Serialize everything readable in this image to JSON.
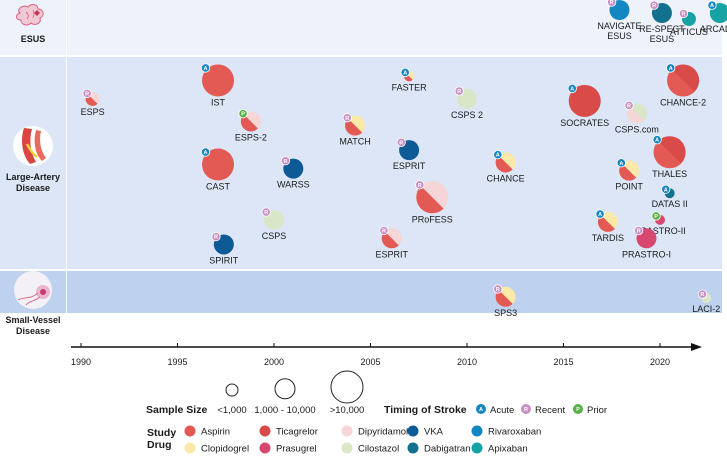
{
  "chart_data": {
    "type": "scatter",
    "xlim": [
      1990,
      2024
    ],
    "x_ticks": [
      1990,
      1995,
      2000,
      2005,
      2010,
      2015,
      2020
    ],
    "rows": [
      {
        "key": "esus",
        "label": [
          "ESUS"
        ]
      },
      {
        "key": "lad",
        "label": [
          "Large-Artery",
          "Disease"
        ]
      },
      {
        "key": "svd",
        "label": [
          "Small-Vessel",
          "Disease"
        ]
      }
    ],
    "colors": {
      "Aspirin": "#e35a55",
      "Ticagrelor": "#d94b48",
      "Dipyridamole": "#f6d5d6",
      "VKA": "#0d5a96",
      "Rivaroxaban": "#1487c2",
      "Clopidogrel": "#fbe9a8",
      "Prasugrel": "#d6486f",
      "Cilostazol": "#d9e6c8",
      "Dabigatran": "#12718e",
      "Apixaban": "#17a2a3"
    },
    "timing_colors": {
      "A": "#1487c2",
      "R": "#c98fc3",
      "P": "#58b048"
    },
    "trials": [
      {
        "name": "NAVIGATE ESUS",
        "label_lines": [
          "NAVIGATE",
          "ESUS"
        ],
        "row": "esus",
        "year": 2017.9,
        "lane": 0.14,
        "size": "medium",
        "drugs": [
          "Rivaroxaban"
        ],
        "timing": "R"
      },
      {
        "name": "RE-SPECT ESUS",
        "label_lines": [
          "RE-SPECT",
          "ESUS"
        ],
        "row": "esus",
        "year": 2020.1,
        "lane": 0.2,
        "size": "medium",
        "drugs": [
          "Dabigatran"
        ],
        "timing": "R"
      },
      {
        "name": "ATTICUS",
        "label_lines": [
          "ATTICUS"
        ],
        "row": "esus",
        "year": 2021.5,
        "lane": 0.32,
        "size": "small",
        "drugs": [
          "Apixaban"
        ],
        "timing": "R"
      },
      {
        "name": "ARCADIA",
        "label_lines": [
          "ARCADIA"
        ],
        "row": "esus",
        "year": 2023.1,
        "lane": 0.2,
        "size": "medium",
        "drugs": [
          "Apixaban"
        ],
        "timing": "A"
      },
      {
        "name": "ESPS",
        "label_lines": [
          "ESPS"
        ],
        "row": "lad",
        "year": 1990.6,
        "lane": 0.18,
        "size": "small",
        "drugs": [
          "Aspirin",
          "Dipyridamole"
        ],
        "timing": "R"
      },
      {
        "name": "IST",
        "label_lines": [
          "IST"
        ],
        "row": "lad",
        "year": 1997.1,
        "lane": 0.09,
        "size": "large",
        "drugs": [
          "Aspirin"
        ],
        "timing": "A"
      },
      {
        "name": "ESPS-2",
        "label_lines": [
          "ESPS-2"
        ],
        "row": "lad",
        "year": 1998.8,
        "lane": 0.29,
        "size": "medium",
        "drugs": [
          "Aspirin",
          "Dipyridamole"
        ],
        "timing": "P"
      },
      {
        "name": "CAST",
        "label_lines": [
          "CAST"
        ],
        "row": "lad",
        "year": 1997.1,
        "lane": 0.5,
        "size": "large",
        "drugs": [
          "Aspirin"
        ],
        "timing": "A"
      },
      {
        "name": "WARSS",
        "label_lines": [
          "WARSS"
        ],
        "row": "lad",
        "year": 2001.0,
        "lane": 0.52,
        "size": "medium",
        "drugs": [
          "VKA"
        ],
        "timing": "R"
      },
      {
        "name": "CSPS",
        "label_lines": [
          "CSPS"
        ],
        "row": "lad",
        "year": 2000.0,
        "lane": 0.77,
        "size": "medium",
        "drugs": [
          "Cilostazol"
        ],
        "timing": "R"
      },
      {
        "name": "SPIRIT",
        "label_lines": [
          "SPIRIT"
        ],
        "row": "lad",
        "year": 1997.4,
        "lane": 0.89,
        "size": "medium",
        "drugs": [
          "VKA"
        ],
        "timing": "R"
      },
      {
        "name": "MATCH",
        "label_lines": [
          "MATCH"
        ],
        "row": "lad",
        "year": 2004.2,
        "lane": 0.31,
        "size": "medium",
        "drugs": [
          "Aspirin",
          "Clopidogrel"
        ],
        "timing": "R"
      },
      {
        "name": "FASTER",
        "label_lines": [
          "FASTER"
        ],
        "row": "lad",
        "year": 2007.0,
        "lane": 0.07,
        "size": "tiny",
        "drugs": [
          "Aspirin",
          "Clopidogrel"
        ],
        "timing": "A"
      },
      {
        "name": "ESPRIT",
        "label_lines": [
          "ESPRIT"
        ],
        "row": "lad",
        "year": 2007.0,
        "lane": 0.43,
        "size": "medium",
        "drugs": [
          "VKA"
        ],
        "timing": "R"
      },
      {
        "name": "ESPRIT",
        "label_lines": [
          "ESPRIT"
        ],
        "row": "lad",
        "year": 2006.1,
        "lane": 0.86,
        "size": "medium",
        "drugs": [
          "Aspirin",
          "Dipyridamole"
        ],
        "timing": "R"
      },
      {
        "name": "PRoFESS",
        "label_lines": [
          "PRoFESS"
        ],
        "row": "lad",
        "year": 2008.2,
        "lane": 0.66,
        "size": "large",
        "drugs": [
          "Aspirin",
          "Dipyridamole"
        ],
        "timing": "R"
      },
      {
        "name": "CSPS 2",
        "label_lines": [
          "CSPS 2"
        ],
        "row": "lad",
        "year": 2010.0,
        "lane": 0.18,
        "size": "medium",
        "drugs": [
          "Cilostazol"
        ],
        "timing": "R"
      },
      {
        "name": "CHANCE",
        "label_lines": [
          "CHANCE"
        ],
        "row": "lad",
        "year": 2012.0,
        "lane": 0.49,
        "size": "medium",
        "drugs": [
          "Aspirin",
          "Clopidogrel"
        ],
        "timing": "A"
      },
      {
        "name": "SOCRATES",
        "label_lines": [
          "SOCRATES"
        ],
        "row": "lad",
        "year": 2016.1,
        "lane": 0.19,
        "size": "large",
        "drugs": [
          "Ticagrelor"
        ],
        "timing": "A"
      },
      {
        "name": "CSPS.com",
        "label_lines": [
          "CSPS.com"
        ],
        "row": "lad",
        "year": 2018.8,
        "lane": 0.25,
        "size": "medium",
        "drugs": [
          "Dipyridamole",
          "Cilostazol"
        ],
        "timing": "R"
      },
      {
        "name": "CHANCE-2",
        "label_lines": [
          "CHANCE-2"
        ],
        "row": "lad",
        "year": 2021.2,
        "lane": 0.09,
        "size": "large",
        "drugs": [
          "Aspirin",
          "Ticagrelor"
        ],
        "timing": "A"
      },
      {
        "name": "THALES",
        "label_lines": [
          "THALES"
        ],
        "row": "lad",
        "year": 2020.5,
        "lane": 0.44,
        "size": "large",
        "drugs": [
          "Aspirin",
          "Ticagrelor"
        ],
        "timing": "A"
      },
      {
        "name": "POINT",
        "label_lines": [
          "POINT"
        ],
        "row": "lad",
        "year": 2018.4,
        "lane": 0.53,
        "size": "medium",
        "drugs": [
          "Aspirin",
          "Clopidogrel"
        ],
        "timing": "A"
      },
      {
        "name": "DATAS II",
        "label_lines": [
          "DATAS II"
        ],
        "row": "lad",
        "year": 2020.5,
        "lane": 0.64,
        "size": "tiny",
        "drugs": [
          "Dabigatran"
        ],
        "timing": "A"
      },
      {
        "name": "TARDIS",
        "label_lines": [
          "TARDIS"
        ],
        "row": "lad",
        "year": 2017.3,
        "lane": 0.78,
        "size": "medium",
        "drugs": [
          "Aspirin",
          "Clopidogrel"
        ],
        "timing": "A"
      },
      {
        "name": "PRASTRO-II",
        "label_lines": [
          "PRASTRO-II"
        ],
        "row": "lad",
        "year": 2020.0,
        "lane": 0.77,
        "size": "tiny",
        "drugs": [
          "Prasugrel"
        ],
        "timing": "P"
      },
      {
        "name": "PRASTRO-I",
        "label_lines": [
          "PRASTRO-I"
        ],
        "row": "lad",
        "year": 2019.3,
        "lane": 0.86,
        "size": "medium",
        "drugs": [
          "Prasugrel"
        ],
        "timing": "R"
      },
      {
        "name": "SPS3",
        "label_lines": [
          "SPS3"
        ],
        "row": "svd",
        "year": 2012.0,
        "lane": 0.56,
        "size": "medium",
        "drugs": [
          "Aspirin",
          "Clopidogrel"
        ],
        "timing": "R"
      },
      {
        "name": "LACI-2",
        "label_lines": [
          "LACI-2"
        ],
        "row": "svd",
        "year": 2022.4,
        "lane": 0.6,
        "size": "tiny",
        "drugs": [
          "Cilostazol"
        ],
        "timing": "R"
      }
    ]
  },
  "legend": {
    "sample_size_title": "Sample Size",
    "sample_sizes": [
      {
        "size": "small",
        "label": "<1,000"
      },
      {
        "size": "medium",
        "label": "1,000 - 10,000"
      },
      {
        "size": "large",
        "label": ">10,000"
      }
    ],
    "timing_title": "Timing of Stroke",
    "timing": [
      {
        "code": "A",
        "label": "Acute"
      },
      {
        "code": "R",
        "label": "Recent"
      },
      {
        "code": "P",
        "label": "Prior"
      }
    ],
    "drug_title": [
      "Study",
      "Drug"
    ],
    "drugs_row1": [
      "Aspirin",
      "Ticagrelor",
      "Dipyridamole",
      "VKA",
      "Rivaroxaban"
    ],
    "drugs_row2": [
      "Clopidogrel",
      "Prasugrel",
      "Cilostazol",
      "Dabigatran",
      "Apixaban"
    ]
  }
}
